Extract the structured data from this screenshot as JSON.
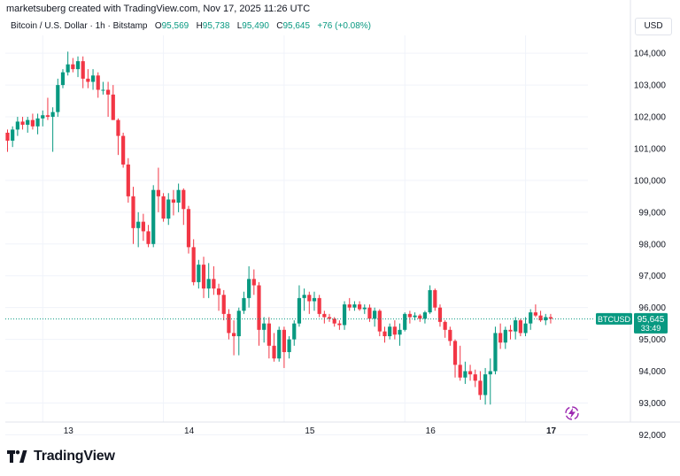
{
  "header": {
    "note": "marketsuberg created with TradingView.com, Nov 17, 2025 11:26 UTC",
    "symbol": "Bitcoin / U.S. Dollar · 1h · Bitstamp",
    "o_label": "O",
    "o_value": "95,569",
    "h_label": "H",
    "h_value": "95,738",
    "l_label": "L",
    "l_value": "95,490",
    "c_label": "C",
    "c_value": "95,645",
    "change": "+76 (+0.08%)",
    "currency": "USD"
  },
  "colors": {
    "up": "#089981",
    "down": "#f23645",
    "grid": "#f0f3fa",
    "axis_text": "#131722"
  },
  "price_tag": {
    "symbol": "BTCUSD",
    "price": "95,645",
    "countdown": "33:49"
  },
  "branding": {
    "name": "TradingView"
  },
  "chart_data": {
    "type": "candlestick",
    "ylim": [
      91900,
      104450
    ],
    "y_ticks": [
      {
        "value": 104000,
        "label": "104,000"
      },
      {
        "value": 103000,
        "label": "103,000"
      },
      {
        "value": 102000,
        "label": "102,000"
      },
      {
        "value": 101000,
        "label": "101,000"
      },
      {
        "value": 100000,
        "label": "100,000"
      },
      {
        "value": 99000,
        "label": "99,000"
      },
      {
        "value": 98000,
        "label": "98,000"
      },
      {
        "value": 97000,
        "label": "97,000"
      },
      {
        "value": 96000,
        "label": "96,000"
      },
      {
        "value": 95000,
        "label": "95,000"
      },
      {
        "value": 94000,
        "label": "94,000"
      },
      {
        "value": 93000,
        "label": "93,000"
      },
      {
        "value": 92000,
        "label": "92,000"
      }
    ],
    "x_ticks": [
      {
        "index": 7,
        "label": "13",
        "bold": false
      },
      {
        "index": 31,
        "label": "14",
        "bold": false
      },
      {
        "index": 55,
        "label": "15",
        "bold": false
      },
      {
        "index": 79,
        "label": "16",
        "bold": false
      },
      {
        "index": 103,
        "label": "17",
        "bold": true
      }
    ],
    "last_price": 95645,
    "candles": [
      [
        101500,
        101600,
        100900,
        101250
      ],
      [
        101250,
        101700,
        101050,
        101600
      ],
      [
        101600,
        102000,
        101400,
        101850
      ],
      [
        101850,
        102000,
        101600,
        101750
      ],
      [
        101750,
        102000,
        101500,
        101900
      ],
      [
        101900,
        102100,
        101600,
        101700
      ],
      [
        101700,
        102100,
        101450,
        101950
      ],
      [
        101950,
        102200,
        101700,
        102050
      ],
      [
        102050,
        102600,
        101900,
        102000
      ],
      [
        102000,
        102300,
        100900,
        102150
      ],
      [
        102150,
        103200,
        102000,
        103000
      ],
      [
        103000,
        103500,
        102900,
        103400
      ],
      [
        103400,
        104050,
        103300,
        103650
      ],
      [
        103650,
        103850,
        103400,
        103500
      ],
      [
        103500,
        103900,
        103250,
        103750
      ],
      [
        103750,
        103900,
        102900,
        103200
      ],
      [
        103200,
        103500,
        102900,
        103100
      ],
      [
        103100,
        103500,
        102850,
        103300
      ],
      [
        103300,
        103400,
        102600,
        102850
      ],
      [
        102850,
        103100,
        102700,
        102850
      ],
      [
        102850,
        103100,
        102000,
        102700
      ],
      [
        102700,
        103000,
        101900,
        101900
      ],
      [
        101900,
        101950,
        100800,
        101400
      ],
      [
        101400,
        101500,
        100400,
        100500
      ],
      [
        100500,
        100700,
        99300,
        99500
      ],
      [
        99500,
        99800,
        98000,
        98500
      ],
      [
        98500,
        99000,
        97900,
        98700
      ],
      [
        98700,
        98950,
        98100,
        98400
      ],
      [
        98400,
        98600,
        97900,
        98000
      ],
      [
        98000,
        99850,
        97900,
        99700
      ],
      [
        99700,
        100400,
        99000,
        99500
      ],
      [
        99500,
        99600,
        98700,
        98800
      ],
      [
        98800,
        99600,
        98600,
        99400
      ],
      [
        99400,
        99700,
        98900,
        99300
      ],
      [
        99300,
        99900,
        99000,
        99700
      ],
      [
        99700,
        99750,
        98600,
        99100
      ],
      [
        99100,
        99200,
        97700,
        97900
      ],
      [
        97900,
        98150,
        96700,
        96800
      ],
      [
        96800,
        97500,
        96600,
        97350
      ],
      [
        97350,
        97600,
        96300,
        96600
      ],
      [
        96600,
        97400,
        96300,
        96900
      ],
      [
        96900,
        97300,
        96400,
        96600
      ],
      [
        96600,
        96750,
        95900,
        96400
      ],
      [
        96400,
        96550,
        95600,
        95800
      ],
      [
        95800,
        95950,
        95000,
        95200
      ],
      [
        95200,
        95600,
        94500,
        95100
      ],
      [
        95100,
        96000,
        94500,
        95900
      ],
      [
        95900,
        96500,
        95800,
        96300
      ],
      [
        96300,
        97300,
        96000,
        96900
      ],
      [
        96900,
        97200,
        96400,
        96700
      ],
      [
        96700,
        96800,
        94800,
        95300
      ],
      [
        95300,
        95700,
        94900,
        95500
      ],
      [
        95500,
        95700,
        94400,
        94800
      ],
      [
        94800,
        95200,
        94300,
        94400
      ],
      [
        94400,
        95400,
        94300,
        95300
      ],
      [
        95300,
        95400,
        94100,
        94600
      ],
      [
        94600,
        95100,
        94400,
        95000
      ],
      [
        95000,
        95600,
        94800,
        95500
      ],
      [
        95500,
        96700,
        95400,
        96300
      ],
      [
        96300,
        96600,
        95900,
        96400
      ],
      [
        96400,
        96500,
        95800,
        96200
      ],
      [
        96200,
        96500,
        95900,
        96300
      ],
      [
        96300,
        96400,
        95700,
        95800
      ],
      [
        95800,
        95900,
        95500,
        95700
      ],
      [
        95700,
        95800,
        95550,
        95650
      ],
      [
        95650,
        95700,
        95400,
        95500
      ],
      [
        95500,
        95600,
        95300,
        95450
      ],
      [
        95450,
        96200,
        95300,
        96100
      ],
      [
        96100,
        96300,
        95900,
        96000
      ],
      [
        96000,
        96200,
        95900,
        96100
      ],
      [
        96100,
        96200,
        95900,
        95950
      ],
      [
        95950,
        96100,
        95800,
        96000
      ],
      [
        96000,
        96100,
        95550,
        95650
      ],
      [
        95650,
        96000,
        95400,
        95900
      ],
      [
        95900,
        95950,
        95100,
        95250
      ],
      [
        95250,
        95400,
        94900,
        95100
      ],
      [
        95100,
        95500,
        95000,
        95400
      ],
      [
        95400,
        95600,
        95000,
        95150
      ],
      [
        95150,
        95500,
        94800,
        95300
      ],
      [
        95300,
        95850,
        95250,
        95800
      ],
      [
        95800,
        95900,
        95500,
        95700
      ],
      [
        95700,
        95850,
        95600,
        95750
      ],
      [
        95750,
        95800,
        95550,
        95650
      ],
      [
        95650,
        95900,
        95500,
        95850
      ],
      [
        95850,
        96700,
        95800,
        96550
      ],
      [
        96550,
        96600,
        95900,
        96000
      ],
      [
        96000,
        96100,
        95400,
        95550
      ],
      [
        95550,
        95600,
        95050,
        95300
      ],
      [
        95300,
        95400,
        94800,
        94950
      ],
      [
        94950,
        95000,
        93800,
        94200
      ],
      [
        94200,
        94800,
        93700,
        93800
      ],
      [
        93800,
        94300,
        93600,
        94000
      ],
      [
        94000,
        94200,
        93700,
        93900
      ],
      [
        93900,
        94050,
        93500,
        93700
      ],
      [
        93700,
        94000,
        93100,
        93250
      ],
      [
        93250,
        94100,
        92950,
        93900
      ],
      [
        93900,
        94400,
        92950,
        94000
      ],
      [
        94000,
        95400,
        93900,
        95200
      ],
      [
        95200,
        95500,
        94700,
        94900
      ],
      [
        94900,
        95400,
        94700,
        95300
      ],
      [
        95300,
        95450,
        95000,
        95250
      ],
      [
        95250,
        95700,
        95000,
        95600
      ],
      [
        95600,
        95650,
        95100,
        95200
      ],
      [
        95200,
        95700,
        95100,
        95500
      ],
      [
        95500,
        95950,
        95300,
        95850
      ],
      [
        95850,
        96100,
        95700,
        95750
      ],
      [
        95750,
        95900,
        95550,
        95600
      ],
      [
        95600,
        95800,
        95450,
        95700
      ],
      [
        95700,
        95800,
        95500,
        95650
      ]
    ]
  }
}
